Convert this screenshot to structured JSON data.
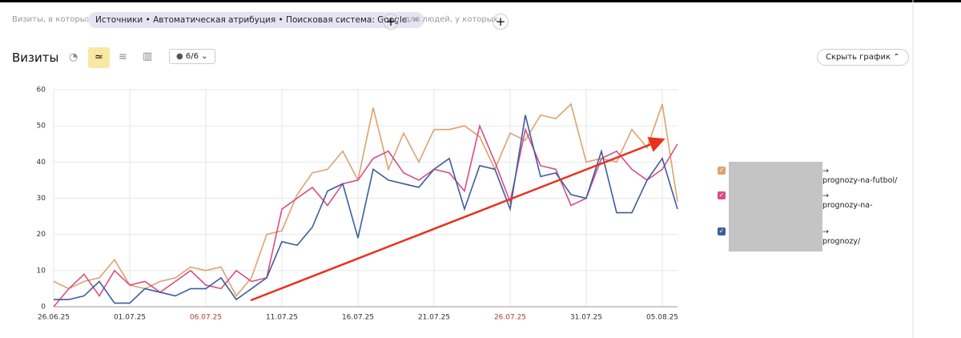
{
  "filter": {
    "prefix": "Визиты, в которых",
    "chip": "Источники • Автоматическая атрибуция • Поисковая система: Google",
    "people": "для людей, у которых"
  },
  "toolbar": {
    "title": "Визиты",
    "series_count": "6/6",
    "hide_chart": "Скрыть график"
  },
  "chart_data": {
    "type": "line",
    "categories": [
      "26.06.25",
      null,
      null,
      null,
      null,
      "01.07.25",
      null,
      null,
      null,
      null,
      "06.07.25",
      null,
      null,
      null,
      null,
      "11.07.25",
      null,
      null,
      null,
      null,
      "16.07.25",
      null,
      null,
      null,
      null,
      "21.07.25",
      null,
      null,
      null,
      null,
      "26.07.25",
      null,
      null,
      null,
      null,
      "31.07.25",
      null,
      null,
      null,
      null,
      "05.08.25",
      null
    ],
    "highlighted_categories": [
      10,
      30
    ],
    "highlight_color": "#b03a3a",
    "ylim": [
      0,
      60
    ],
    "yticks": [
      0,
      10,
      20,
      30,
      40,
      50,
      60
    ],
    "grid": true,
    "series": [
      {
        "name": "→\nprognozy-na-futbol/",
        "color": "#dca36f",
        "values": [
          7,
          5,
          7,
          8,
          13,
          6,
          5,
          7,
          8,
          11,
          10,
          11,
          3,
          8,
          20,
          21,
          31,
          37,
          38,
          43,
          35,
          55,
          38,
          48,
          40,
          49,
          49,
          50,
          47,
          38,
          48,
          46,
          53,
          52,
          56,
          40,
          41,
          40,
          49,
          44,
          56,
          29
        ]
      },
      {
        "name": "→\nprognozy-na-",
        "color": "#d94d85",
        "values": [
          0,
          5,
          9,
          3,
          10,
          6,
          7,
          4,
          7,
          10,
          6,
          5,
          10,
          7,
          8,
          27,
          30,
          33,
          28,
          34,
          35,
          41,
          43,
          37,
          35,
          38,
          37,
          32,
          50,
          40,
          29,
          49,
          39,
          38,
          28,
          30,
          41,
          43,
          38,
          35,
          38,
          45
        ]
      },
      {
        "name": "→\nprognozy/",
        "color": "#3d5d9e",
        "values": [
          2,
          2,
          3,
          7,
          1,
          1,
          5,
          4,
          3,
          5,
          5,
          8,
          2,
          5,
          8,
          18,
          17,
          22,
          32,
          34,
          19,
          38,
          35,
          34,
          33,
          38,
          41,
          27,
          39,
          38,
          27,
          53,
          36,
          37,
          31,
          30,
          43,
          26,
          26,
          35,
          41,
          27
        ]
      }
    ]
  }
}
